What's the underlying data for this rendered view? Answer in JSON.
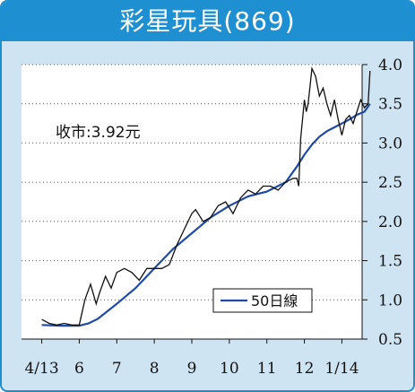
{
  "title": "彩星玩具(869)",
  "price_label": "收市:3.92元",
  "legend": {
    "ma_label": "50日線"
  },
  "colors": {
    "frame": "#1e8fd0",
    "background": "#cfe4f3",
    "plot": "#ffffff",
    "price": "#111111",
    "ma": "#1f4aa8"
  },
  "chart_data": {
    "type": "line",
    "title": "彩星玩具(869)",
    "x_labels": [
      "4/13",
      "6",
      "7",
      "8",
      "9",
      "10",
      "11",
      "12",
      "1/14"
    ],
    "y_ticks": [
      "0.5",
      "1.0",
      "1.5",
      "2.0",
      "2.5",
      "3.0",
      "3.5",
      "4.0"
    ],
    "ylim": [
      0.5,
      4.0
    ],
    "y_axis_side": "right",
    "grid": "horizontal dotted",
    "legend_position": "bottom-right",
    "series": [
      {
        "kind": "price",
        "x": [
          0,
          0.2,
          0.4,
          0.6,
          0.8,
          1.0,
          1.15,
          1.3,
          1.45,
          1.55,
          1.7,
          1.85,
          2.0,
          2.2,
          2.4,
          2.6,
          2.8,
          3.0,
          3.2,
          3.4,
          3.6,
          3.8,
          3.95,
          4.0,
          4.1,
          4.3,
          4.5,
          4.7,
          4.9,
          5.1,
          5.3,
          5.5,
          5.7,
          5.9,
          6.1,
          6.3,
          6.5,
          6.7,
          6.8,
          6.85,
          6.9,
          6.95,
          7.0,
          7.05,
          7.1,
          7.2,
          7.3,
          7.4,
          7.5,
          7.6,
          7.7,
          7.8,
          7.9,
          8.0,
          8.1,
          8.2,
          8.3,
          8.4,
          8.5,
          8.6,
          8.7,
          8.75
        ],
        "values": [
          0.75,
          0.7,
          0.68,
          0.7,
          0.68,
          0.68,
          1.0,
          1.2,
          0.95,
          1.1,
          1.3,
          1.15,
          1.35,
          1.4,
          1.35,
          1.25,
          1.4,
          1.4,
          1.4,
          1.45,
          1.7,
          1.9,
          2.05,
          2.1,
          2.15,
          2.0,
          2.05,
          2.2,
          2.25,
          2.1,
          2.3,
          2.4,
          2.35,
          2.45,
          2.45,
          2.4,
          2.5,
          2.55,
          2.55,
          2.45,
          3.05,
          3.3,
          3.55,
          3.4,
          3.5,
          3.95,
          3.85,
          3.6,
          3.7,
          3.5,
          3.35,
          3.55,
          3.3,
          3.1,
          3.3,
          3.35,
          3.25,
          3.4,
          3.55,
          3.45,
          3.5,
          3.92
        ]
      },
      {
        "kind": "ma",
        "name": "50日線",
        "x": [
          0,
          0.5,
          1.0,
          1.25,
          1.5,
          2.0,
          2.5,
          3.0,
          3.5,
          4.0,
          4.5,
          5.0,
          5.5,
          6.0,
          6.5,
          6.8,
          7.0,
          7.2,
          7.4,
          7.6,
          7.8,
          8.0,
          8.2,
          8.4,
          8.6,
          8.75
        ],
        "values": [
          0.68,
          0.67,
          0.67,
          0.7,
          0.76,
          0.95,
          1.15,
          1.4,
          1.65,
          1.85,
          2.05,
          2.2,
          2.32,
          2.38,
          2.5,
          2.7,
          2.85,
          2.98,
          3.08,
          3.15,
          3.2,
          3.25,
          3.3,
          3.36,
          3.4,
          3.5
        ]
      }
    ]
  }
}
